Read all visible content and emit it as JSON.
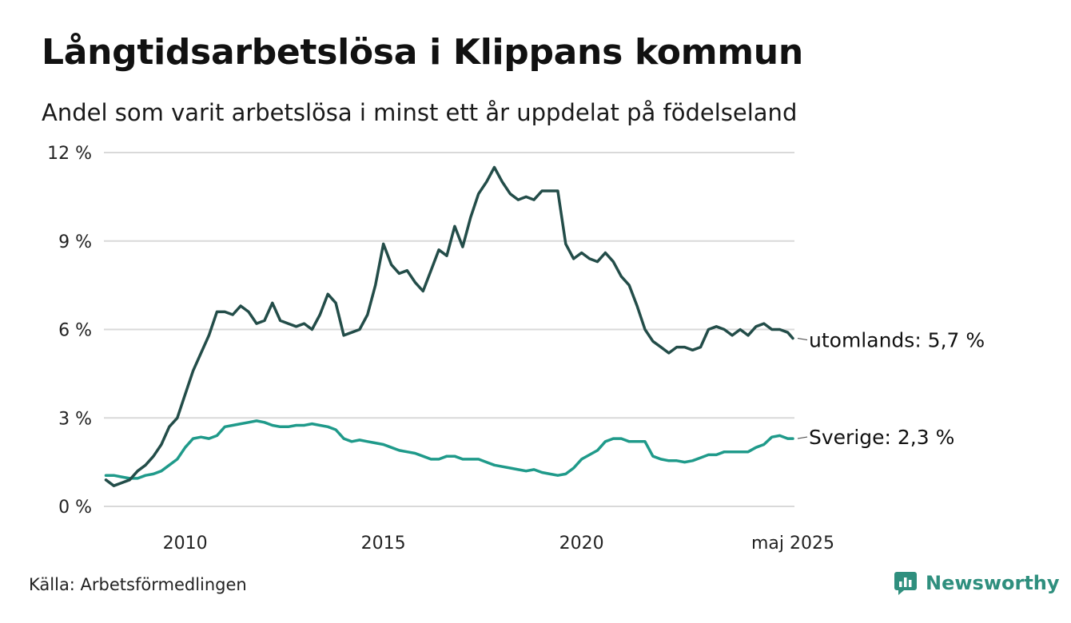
{
  "title": "Långtidsarbetslösa i Klippans kommun",
  "subtitle": "Andel som varit arbetslösa i minst ett år uppdelat på födelseland",
  "source": "Källa: Arbetsförmedlingen",
  "brand": "Newsworthy",
  "colors": {
    "utomlands": "#234d49",
    "sverige": "#1f9a8a",
    "grid": "#d9d9d9",
    "brand": "#2f8f7e"
  },
  "chart_data": {
    "type": "line",
    "ylim": [
      0,
      12
    ],
    "yticks": [
      0,
      3,
      6,
      9,
      12
    ],
    "ytick_labels": [
      "0 %",
      "3 %",
      "6 %",
      "9 %",
      "12 %"
    ],
    "xlim": [
      2007.95,
      2025.37
    ],
    "xticks": [
      2010,
      2015,
      2020,
      2025.33
    ],
    "xtick_labels": [
      "2010",
      "2015",
      "2020",
      "maj 2025"
    ],
    "grid": "horizontal",
    "series": [
      {
        "name": "utomlands",
        "end_label": "utomlands: 5,7 %",
        "x": [
          2008.0,
          2008.2,
          2008.4,
          2008.6,
          2008.8,
          2009.0,
          2009.2,
          2009.4,
          2009.6,
          2009.8,
          2010.0,
          2010.2,
          2010.4,
          2010.6,
          2010.8,
          2011.0,
          2011.2,
          2011.4,
          2011.6,
          2011.8,
          2012.0,
          2012.2,
          2012.4,
          2012.6,
          2012.8,
          2013.0,
          2013.2,
          2013.4,
          2013.6,
          2013.8,
          2014.0,
          2014.2,
          2014.4,
          2014.6,
          2014.8,
          2015.0,
          2015.2,
          2015.4,
          2015.6,
          2015.8,
          2016.0,
          2016.2,
          2016.4,
          2016.6,
          2016.8,
          2017.0,
          2017.2,
          2017.4,
          2017.6,
          2017.8,
          2018.0,
          2018.2,
          2018.4,
          2018.6,
          2018.8,
          2019.0,
          2019.2,
          2019.4,
          2019.6,
          2019.8,
          2020.0,
          2020.2,
          2020.4,
          2020.6,
          2020.8,
          2021.0,
          2021.2,
          2021.4,
          2021.6,
          2021.8,
          2022.0,
          2022.2,
          2022.4,
          2022.6,
          2022.8,
          2023.0,
          2023.2,
          2023.4,
          2023.6,
          2023.8,
          2024.0,
          2024.2,
          2024.4,
          2024.6,
          2024.8,
          2025.0,
          2025.2,
          2025.33
        ],
        "y": [
          0.9,
          0.7,
          0.8,
          0.9,
          1.2,
          1.4,
          1.7,
          2.1,
          2.7,
          3.0,
          3.8,
          4.6,
          5.2,
          5.8,
          6.6,
          6.6,
          6.5,
          6.8,
          6.6,
          6.2,
          6.3,
          6.9,
          6.3,
          6.2,
          6.1,
          6.2,
          6.0,
          6.5,
          7.2,
          6.9,
          5.8,
          5.9,
          6.0,
          6.5,
          7.5,
          8.9,
          8.2,
          7.9,
          8.0,
          7.6,
          7.3,
          8.0,
          8.7,
          8.5,
          9.5,
          8.8,
          9.8,
          10.6,
          11.0,
          11.5,
          11.0,
          10.6,
          10.4,
          10.5,
          10.4,
          10.7,
          10.7,
          10.7,
          8.9,
          8.4,
          8.6,
          8.4,
          8.3,
          8.6,
          8.3,
          7.8,
          7.5,
          6.8,
          6.0,
          5.6,
          5.4,
          5.2,
          5.4,
          5.4,
          5.3,
          5.4,
          6.0,
          6.1,
          6.0,
          5.8,
          6.0,
          5.8,
          6.1,
          6.2,
          6.0,
          6.0,
          5.9,
          5.7
        ]
      },
      {
        "name": "Sverige",
        "end_label": "Sverige: 2,3 %",
        "x": [
          2008.0,
          2008.2,
          2008.4,
          2008.6,
          2008.8,
          2009.0,
          2009.2,
          2009.4,
          2009.6,
          2009.8,
          2010.0,
          2010.2,
          2010.4,
          2010.6,
          2010.8,
          2011.0,
          2011.2,
          2011.4,
          2011.6,
          2011.8,
          2012.0,
          2012.2,
          2012.4,
          2012.6,
          2012.8,
          2013.0,
          2013.2,
          2013.4,
          2013.6,
          2013.8,
          2014.0,
          2014.2,
          2014.4,
          2014.6,
          2014.8,
          2015.0,
          2015.2,
          2015.4,
          2015.6,
          2015.8,
          2016.0,
          2016.2,
          2016.4,
          2016.6,
          2016.8,
          2017.0,
          2017.2,
          2017.4,
          2017.6,
          2017.8,
          2018.0,
          2018.2,
          2018.4,
          2018.6,
          2018.8,
          2019.0,
          2019.2,
          2019.4,
          2019.6,
          2019.8,
          2020.0,
          2020.2,
          2020.4,
          2020.6,
          2020.8,
          2021.0,
          2021.2,
          2021.4,
          2021.6,
          2021.8,
          2022.0,
          2022.2,
          2022.4,
          2022.6,
          2022.8,
          2023.0,
          2023.2,
          2023.4,
          2023.6,
          2023.8,
          2024.0,
          2024.2,
          2024.4,
          2024.6,
          2024.8,
          2025.0,
          2025.2,
          2025.33
        ],
        "y": [
          1.05,
          1.05,
          1.0,
          0.95,
          0.95,
          1.05,
          1.1,
          1.2,
          1.4,
          1.6,
          2.0,
          2.3,
          2.35,
          2.3,
          2.4,
          2.7,
          2.75,
          2.8,
          2.85,
          2.9,
          2.85,
          2.75,
          2.7,
          2.7,
          2.75,
          2.75,
          2.8,
          2.75,
          2.7,
          2.6,
          2.3,
          2.2,
          2.25,
          2.2,
          2.15,
          2.1,
          2.0,
          1.9,
          1.85,
          1.8,
          1.7,
          1.6,
          1.6,
          1.7,
          1.7,
          1.6,
          1.6,
          1.6,
          1.5,
          1.4,
          1.35,
          1.3,
          1.25,
          1.2,
          1.25,
          1.15,
          1.1,
          1.05,
          1.1,
          1.3,
          1.6,
          1.75,
          1.9,
          2.2,
          2.3,
          2.3,
          2.2,
          2.2,
          2.2,
          1.7,
          1.6,
          1.55,
          1.55,
          1.5,
          1.55,
          1.65,
          1.75,
          1.75,
          1.85,
          1.85,
          1.85,
          1.85,
          2.0,
          2.1,
          2.35,
          2.4,
          2.3,
          2.3
        ]
      }
    ]
  }
}
